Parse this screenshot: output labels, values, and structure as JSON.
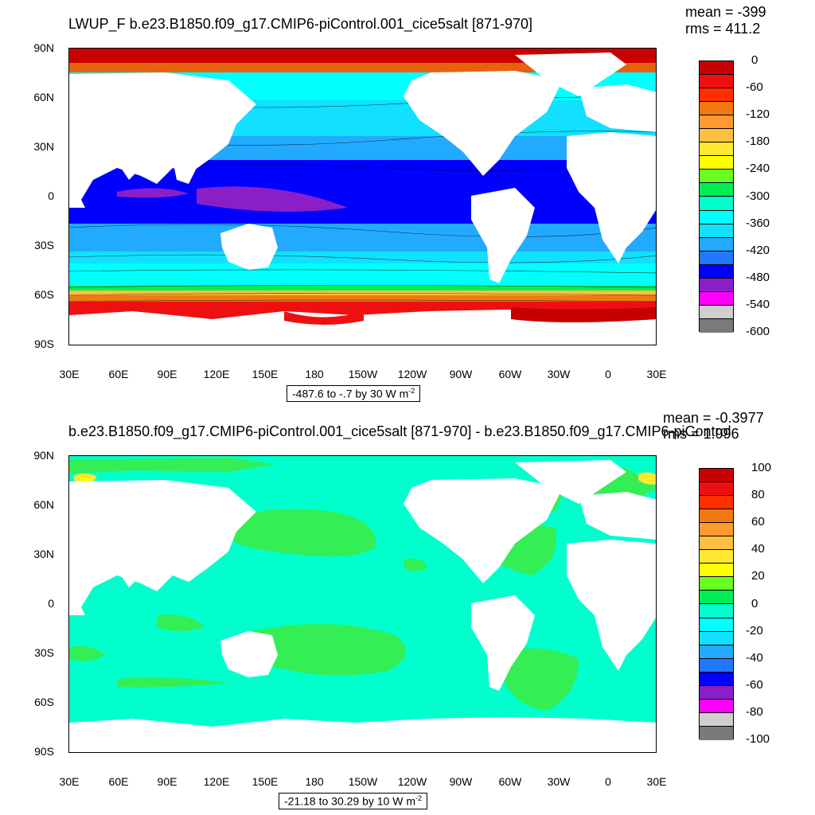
{
  "panels": [
    {
      "title": "LWUP_F b.e23.B1850.f09_g17.CMIP6-piControl.001_cice5salt [871-970]",
      "mean": "mean = -399",
      "rms": "rms = 411.2",
      "contour_info": "-487.6 to -.7 by 30  W m",
      "unit_exp": "-2",
      "colorbar_labels": [
        "0",
        "-60",
        "-120",
        "-180",
        "-240",
        "-300",
        "-360",
        "-420",
        "-480",
        "-540",
        "-600"
      ],
      "colorbar_colors": [
        "#c80000",
        "#ee1010",
        "#ff2e00",
        "#f07a10",
        "#ff9a30",
        "#ffc040",
        "#ffe830",
        "#ffff00",
        "#66ff20",
        "#00ee55",
        "#00ffcc",
        "#00ffff",
        "#11e0ff",
        "#22aaff",
        "#2277ff",
        "#0000ff",
        "#8a1fc8",
        "#ff00ff",
        "#cfcfcf",
        "#7a7a7a"
      ]
    },
    {
      "title": "b.e23.B1850.f09_g17.CMIP6-piControl.001_cice5salt [871-970] - b.e23.B1850.f09_g17.CMIP6-piControl",
      "mean": "mean = -0.3977",
      "rms": "rms = 1.996",
      "contour_info": "-21.18 to 30.29 by 10  W m",
      "unit_exp": "-2",
      "colorbar_labels": [
        "100",
        "80",
        "60",
        "40",
        "20",
        "0",
        "-20",
        "-40",
        "-60",
        "-80",
        "-100"
      ],
      "colorbar_colors": [
        "#c80000",
        "#ee1010",
        "#ff2e00",
        "#f07a10",
        "#ff9a30",
        "#ffc040",
        "#ffe830",
        "#ffff00",
        "#66ff20",
        "#00ee55",
        "#00ffcc",
        "#00ffff",
        "#11e0ff",
        "#22aaff",
        "#2277ff",
        "#0000ff",
        "#8a1fc8",
        "#ff00ff",
        "#cfcfcf",
        "#7a7a7a"
      ]
    }
  ],
  "axes": {
    "lat_labels": [
      "90N",
      "60N",
      "30N",
      "0",
      "30S",
      "60S",
      "90S"
    ],
    "lon_labels": [
      "30E",
      "60E",
      "90E",
      "120E",
      "150E",
      "180",
      "150W",
      "120W",
      "90W",
      "60W",
      "30W",
      "0",
      "30E"
    ]
  },
  "colors": {
    "land": "#ffffff",
    "frame": "#000000"
  }
}
